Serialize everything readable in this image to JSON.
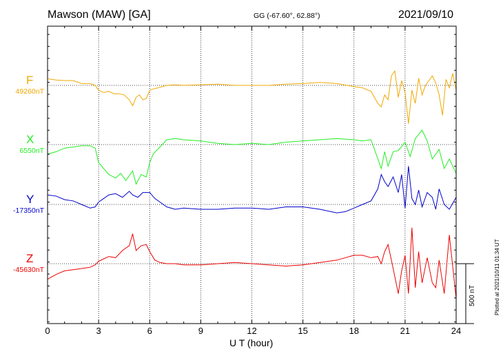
{
  "header": {
    "station": "Mawson (MAW)  [GA]",
    "coords": "GG (-67.60°,  62.88°)",
    "date": "2021/09/10"
  },
  "plotted_note": "Plotted at 2021/10/11 01:34 UT",
  "chart_data": {
    "type": "line",
    "xlabel": "U T (hour)",
    "xlim": [
      0,
      24
    ],
    "xticks": [
      "0",
      "3",
      "6",
      "9",
      "12",
      "15",
      "18",
      "21",
      "24"
    ],
    "scale_bar": {
      "label": "500 nT",
      "nT": 500
    },
    "grid": "dotted",
    "series": [
      {
        "name": "F",
        "baseline_label": "49260nT",
        "color": "#f0a800",
        "x": [
          0,
          0.5,
          1,
          1.5,
          2,
          2.5,
          2.8,
          3.0,
          3.3,
          3.6,
          3.9,
          4.2,
          4.5,
          4.8,
          5.0,
          5.2,
          5.4,
          5.6,
          5.8,
          6.0,
          6.2,
          6.5,
          7.0,
          7.5,
          8,
          9,
          10,
          11,
          12,
          13,
          14,
          15,
          16,
          17,
          18,
          18.5,
          19,
          19.4,
          19.6,
          19.8,
          20,
          20.2,
          20.4,
          20.6,
          20.8,
          21.0,
          21.2,
          21.4,
          21.6,
          21.8,
          22.0,
          22.2,
          22.4,
          22.6,
          22.8,
          23.0,
          23.2,
          23.4,
          23.6,
          23.8,
          24.0
        ],
        "values": [
          55,
          45,
          40,
          40,
          15,
          15,
          0,
          -40,
          -60,
          -50,
          -70,
          -70,
          -80,
          -120,
          -170,
          -100,
          -80,
          -120,
          -110,
          -40,
          -30,
          -20,
          0,
          5,
          0,
          5,
          10,
          0,
          0,
          0,
          10,
          15,
          25,
          15,
          -10,
          -20,
          -50,
          -150,
          -180,
          -80,
          -120,
          80,
          120,
          -100,
          40,
          -60,
          -320,
          -40,
          -150,
          60,
          -80,
          0,
          40,
          80,
          20,
          -80,
          -250,
          50,
          -20,
          100,
          -40
        ]
      },
      {
        "name": "X",
        "baseline_label": "6550nT",
        "color": "#22ee22",
        "x": [
          0,
          0.5,
          1,
          1.5,
          2,
          2.5,
          2.8,
          3.0,
          3.3,
          3.6,
          4.0,
          4.3,
          4.6,
          5.0,
          5.2,
          5.5,
          5.8,
          6.0,
          6.2,
          6.6,
          7.0,
          7.5,
          8,
          9,
          10,
          11,
          12,
          13,
          14,
          15,
          16,
          17,
          18,
          18.5,
          19,
          19.3,
          19.6,
          19.8,
          20.0,
          20.3,
          20.6,
          21.0,
          21.3,
          21.6,
          22.0,
          22.3,
          22.6,
          23.0,
          23.3,
          23.6,
          24.0
        ],
        "values": [
          -80,
          -60,
          -30,
          -20,
          -10,
          -10,
          -30,
          -150,
          -200,
          -250,
          -280,
          -240,
          -300,
          -220,
          -330,
          -250,
          -270,
          -150,
          -80,
          -20,
          40,
          50,
          40,
          30,
          10,
          0,
          10,
          0,
          20,
          30,
          40,
          50,
          40,
          30,
          40,
          -80,
          -200,
          -60,
          -180,
          -60,
          -50,
          20,
          -100,
          50,
          120,
          30,
          -120,
          -40,
          -200,
          -120,
          -240
        ]
      },
      {
        "name": "Y",
        "baseline_label": "-17350nT",
        "color": "#0000cc",
        "x": [
          0,
          0.5,
          1,
          1.5,
          2,
          2.5,
          2.8,
          3.0,
          3.3,
          3.6,
          4.0,
          4.4,
          4.8,
          5.0,
          5.3,
          5.6,
          6.0,
          6.3,
          6.6,
          7.0,
          7.5,
          8,
          9,
          10,
          11,
          12,
          13,
          14,
          15,
          16,
          17,
          17.5,
          18,
          18.5,
          19,
          19.4,
          19.6,
          19.8,
          20.0,
          20.3,
          20.6,
          20.8,
          21.0,
          21.2,
          21.4,
          21.6,
          21.8,
          22.0,
          22.3,
          22.6,
          22.8,
          23.0,
          23.3,
          23.6,
          24.0
        ],
        "values": [
          80,
          70,
          40,
          30,
          0,
          -30,
          -20,
          20,
          50,
          80,
          90,
          60,
          110,
          80,
          60,
          100,
          100,
          50,
          20,
          -20,
          -40,
          -30,
          -40,
          -40,
          -30,
          -30,
          -40,
          -20,
          -20,
          -40,
          -70,
          -60,
          -30,
          0,
          30,
          130,
          250,
          190,
          150,
          230,
          100,
          250,
          -30,
          320,
          50,
          0,
          120,
          -20,
          100,
          60,
          -40,
          130,
          0,
          -40,
          60
        ]
      },
      {
        "name": "Z",
        "baseline_label": "-45630nT",
        "color": "#ee0000",
        "x": [
          0,
          0.5,
          1,
          1.5,
          2,
          2.5,
          2.8,
          3.0,
          3.3,
          3.6,
          4.0,
          4.4,
          4.8,
          5.0,
          5.2,
          5.5,
          5.8,
          6.0,
          6.3,
          6.6,
          7.0,
          7.5,
          8,
          9,
          10,
          11,
          12,
          13,
          14,
          15,
          16,
          17,
          18,
          18.5,
          19,
          19.4,
          19.6,
          19.8,
          20.0,
          20.3,
          20.6,
          20.8,
          21.0,
          21.2,
          21.4,
          21.6,
          21.8,
          22.0,
          22.3,
          22.6,
          22.8,
          23.0,
          23.3,
          23.6,
          24.0
        ],
        "values": [
          -130,
          -90,
          -60,
          -50,
          -40,
          -30,
          -10,
          20,
          40,
          60,
          50,
          110,
          150,
          250,
          110,
          150,
          160,
          100,
          30,
          10,
          0,
          0,
          -10,
          -10,
          0,
          10,
          0,
          -10,
          -20,
          -10,
          10,
          30,
          70,
          70,
          50,
          60,
          0,
          100,
          160,
          -40,
          -250,
          -60,
          70,
          -250,
          300,
          -200,
          100,
          -160,
          50,
          -160,
          -200,
          30,
          -250,
          240,
          -290
        ]
      }
    ]
  }
}
